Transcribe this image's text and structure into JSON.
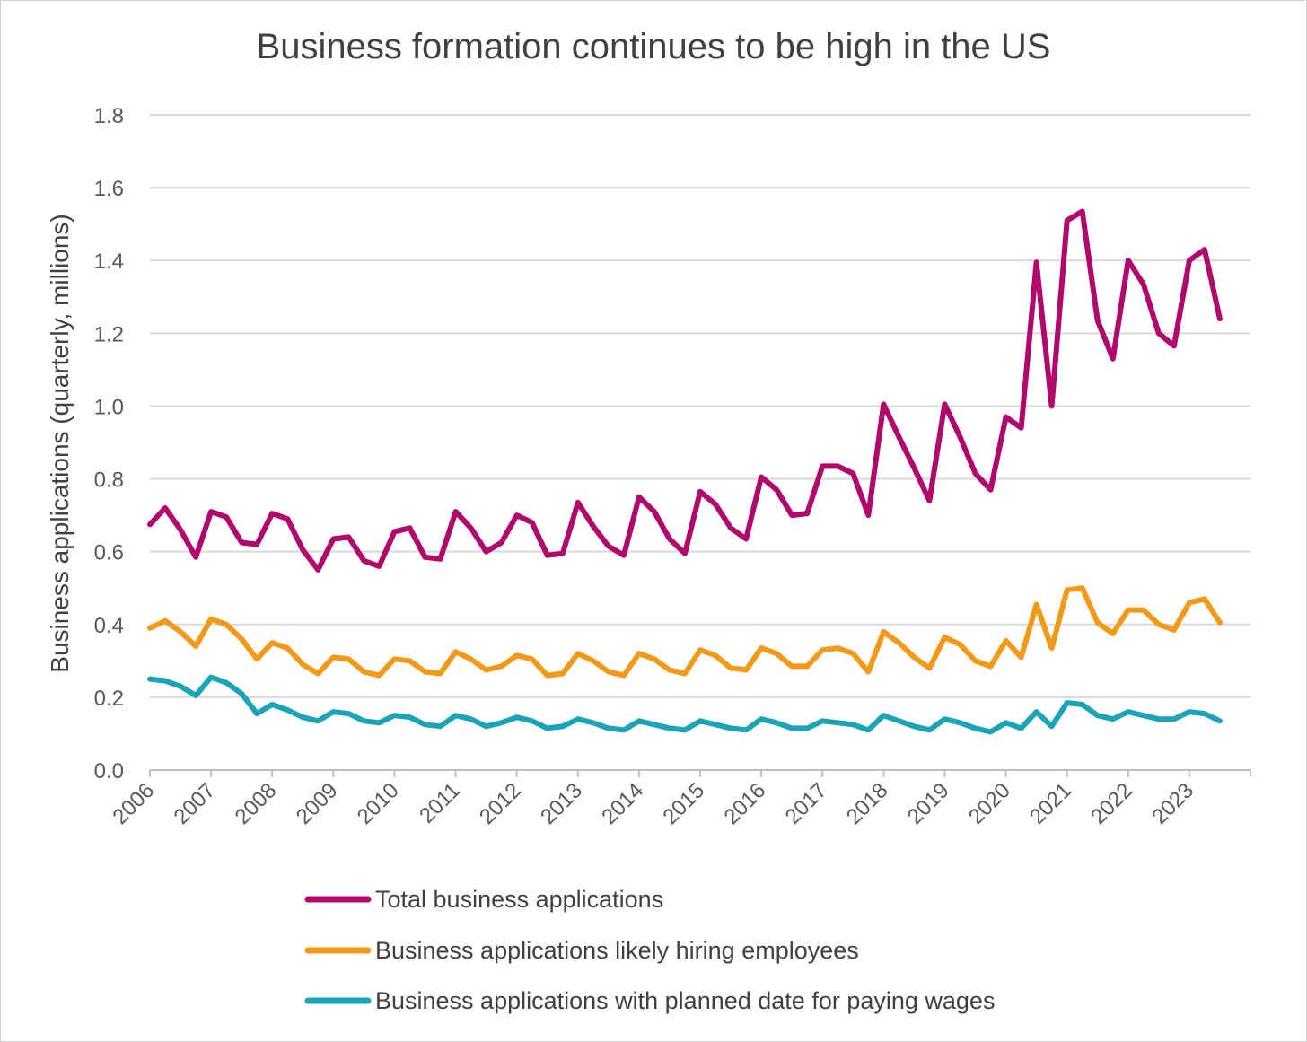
{
  "chart_data": {
    "type": "line",
    "title": "Business formation continues to be high in the US",
    "xlabel": "",
    "ylabel": "Business applications (quarterly, millions)",
    "ylim": [
      0,
      1.8
    ],
    "yticks": [
      "0.0",
      "0.2",
      "0.4",
      "0.6",
      "0.8",
      "1.0",
      "1.2",
      "1.4",
      "1.6",
      "1.8"
    ],
    "xticks": [
      "2006",
      "2007",
      "2008",
      "2009",
      "2010",
      "2011",
      "2012",
      "2013",
      "2014",
      "2015",
      "2016",
      "2017",
      "2018",
      "2019",
      "2020",
      "2021",
      "2022",
      "2023"
    ],
    "x_start_year": 2006,
    "periods_per_year": 4,
    "grid": true,
    "legend_position": "bottom",
    "series": [
      {
        "name": "Total business applications",
        "color": "#B0086B",
        "values": [
          0.675,
          0.72,
          0.66,
          0.585,
          0.71,
          0.695,
          0.625,
          0.62,
          0.705,
          0.69,
          0.605,
          0.55,
          0.635,
          0.64,
          0.575,
          0.56,
          0.655,
          0.665,
          0.585,
          0.58,
          0.71,
          0.665,
          0.6,
          0.625,
          0.7,
          0.68,
          0.59,
          0.595,
          0.735,
          0.67,
          0.615,
          0.59,
          0.75,
          0.71,
          0.635,
          0.595,
          0.765,
          0.73,
          0.665,
          0.635,
          0.805,
          0.77,
          0.7,
          0.705,
          0.835,
          0.835,
          0.815,
          0.7,
          1.005,
          0.915,
          0.83,
          0.74,
          1.005,
          0.915,
          0.815,
          0.77,
          0.97,
          0.94,
          1.395,
          1.0,
          1.51,
          1.535,
          1.235,
          1.13,
          1.4,
          1.335,
          1.2,
          1.165,
          1.4,
          1.43,
          1.24
        ]
      },
      {
        "name": "Business applications likely hiring employees",
        "color": "#F29A17",
        "values": [
          0.39,
          0.41,
          0.38,
          0.34,
          0.415,
          0.4,
          0.36,
          0.305,
          0.35,
          0.335,
          0.29,
          0.265,
          0.31,
          0.305,
          0.27,
          0.26,
          0.305,
          0.3,
          0.27,
          0.265,
          0.325,
          0.305,
          0.275,
          0.285,
          0.315,
          0.305,
          0.26,
          0.265,
          0.32,
          0.3,
          0.27,
          0.26,
          0.32,
          0.305,
          0.275,
          0.265,
          0.33,
          0.315,
          0.28,
          0.275,
          0.335,
          0.32,
          0.285,
          0.285,
          0.33,
          0.335,
          0.32,
          0.27,
          0.38,
          0.35,
          0.31,
          0.28,
          0.365,
          0.345,
          0.3,
          0.285,
          0.355,
          0.31,
          0.455,
          0.335,
          0.495,
          0.5,
          0.405,
          0.375,
          0.44,
          0.44,
          0.4,
          0.385,
          0.46,
          0.47,
          0.405
        ]
      },
      {
        "name": "Business applications with planned date for paying wages",
        "color": "#1BA3B8",
        "values": [
          0.25,
          0.245,
          0.23,
          0.205,
          0.255,
          0.24,
          0.21,
          0.155,
          0.18,
          0.165,
          0.145,
          0.135,
          0.16,
          0.155,
          0.135,
          0.13,
          0.15,
          0.145,
          0.125,
          0.12,
          0.15,
          0.14,
          0.12,
          0.13,
          0.145,
          0.135,
          0.115,
          0.12,
          0.14,
          0.13,
          0.115,
          0.11,
          0.135,
          0.125,
          0.115,
          0.11,
          0.135,
          0.125,
          0.115,
          0.11,
          0.14,
          0.13,
          0.115,
          0.115,
          0.135,
          0.13,
          0.125,
          0.11,
          0.15,
          0.135,
          0.12,
          0.11,
          0.14,
          0.13,
          0.115,
          0.105,
          0.13,
          0.115,
          0.16,
          0.12,
          0.185,
          0.18,
          0.15,
          0.14,
          0.16,
          0.15,
          0.14,
          0.14,
          0.16,
          0.155,
          0.135
        ]
      }
    ]
  }
}
